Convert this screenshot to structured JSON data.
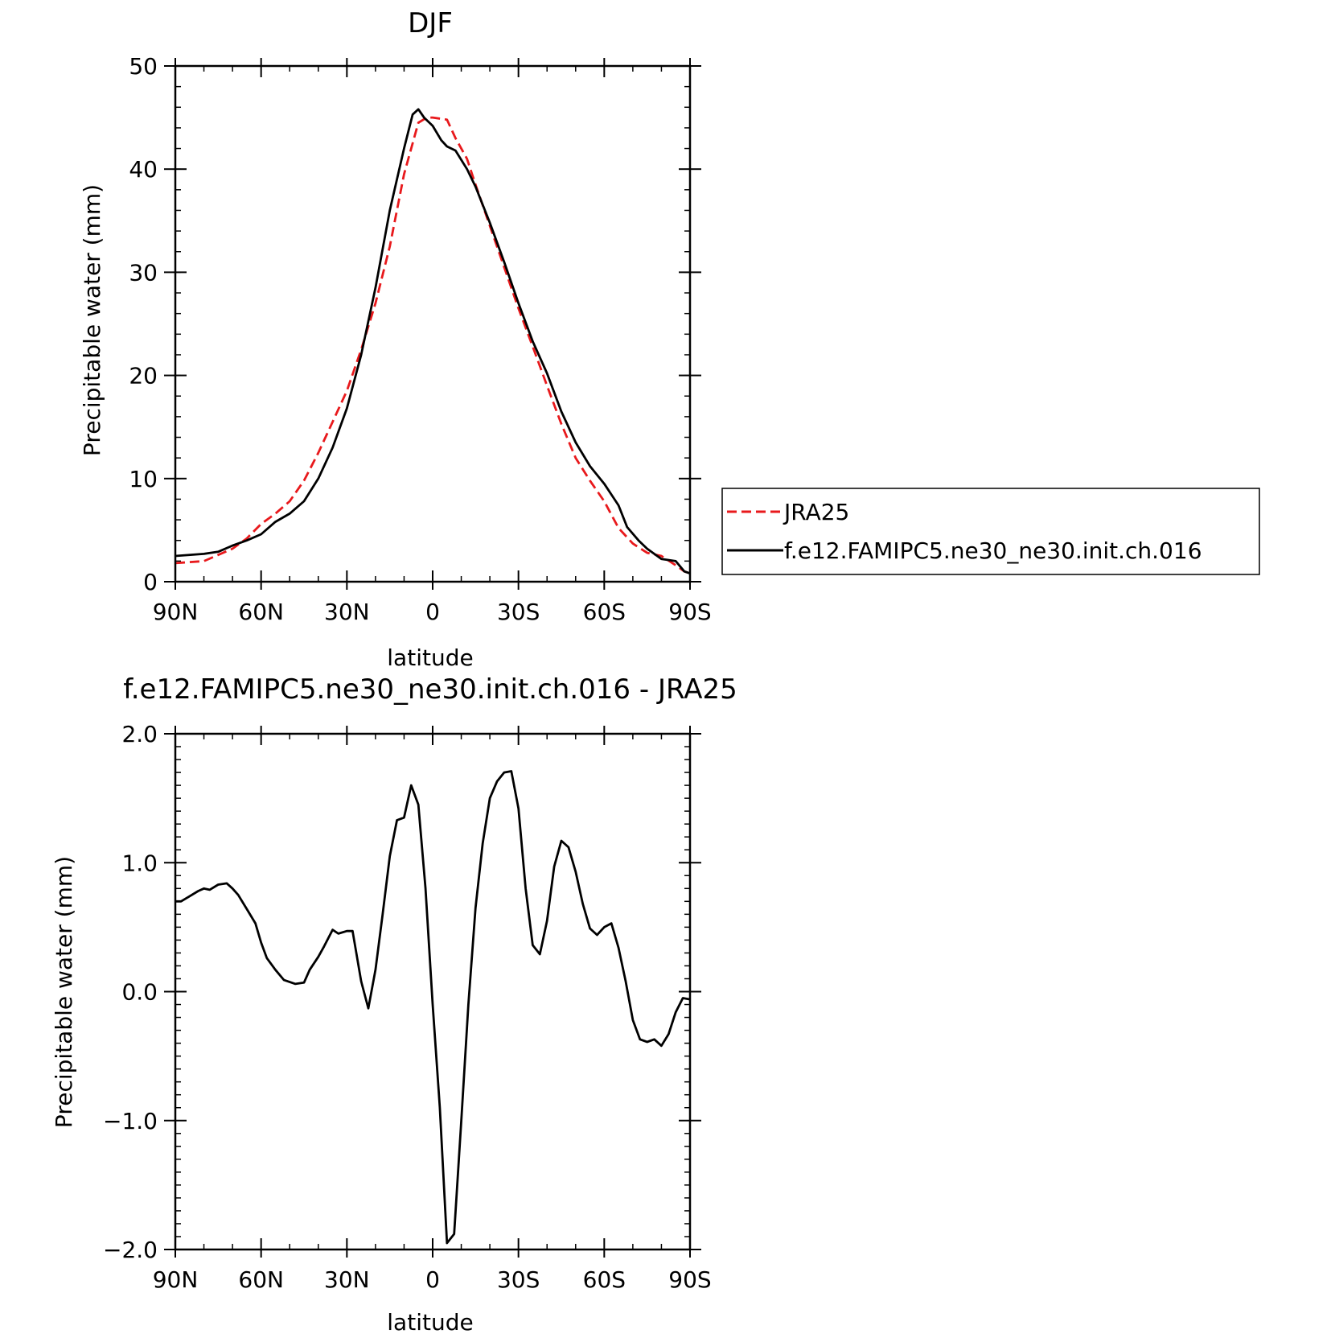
{
  "chart_data": [
    {
      "type": "line",
      "title": "DJF",
      "xlabel": "latitude",
      "ylabel": "Precipitable water (mm)",
      "xlim": [
        90,
        -90
      ],
      "ylim": [
        0,
        50
      ],
      "xticks": [
        {
          "value": 90,
          "label": "90N"
        },
        {
          "value": 60,
          "label": "60N"
        },
        {
          "value": 30,
          "label": "30N"
        },
        {
          "value": 0,
          "label": "0"
        },
        {
          "value": -30,
          "label": "30S"
        },
        {
          "value": -60,
          "label": "60S"
        },
        {
          "value": -90,
          "label": "90S"
        }
      ],
      "yticks": [
        {
          "value": 0,
          "label": "0"
        },
        {
          "value": 10,
          "label": "10"
        },
        {
          "value": 20,
          "label": "20"
        },
        {
          "value": 30,
          "label": "30"
        },
        {
          "value": 40,
          "label": "40"
        },
        {
          "value": 50,
          "label": "50"
        }
      ],
      "legend_position": "right",
      "series": [
        {
          "name": "JRA25",
          "color": "#e8191c",
          "dash": "dashed",
          "x": [
            90,
            80,
            75,
            70,
            65,
            60,
            55,
            50,
            45,
            40,
            35,
            30,
            25,
            20,
            15,
            10,
            5,
            2,
            0,
            -5,
            -8,
            -12,
            -15,
            -20,
            -25,
            -30,
            -35,
            -40,
            -45,
            -50,
            -55,
            -60,
            -65,
            -70,
            -75,
            -80,
            -85,
            -88,
            -90
          ],
          "values": [
            1.8,
            2.0,
            2.6,
            3.2,
            4.2,
            5.6,
            6.6,
            7.8,
            9.8,
            12.5,
            15.5,
            18.5,
            22.5,
            27.0,
            32.5,
            39.5,
            44.5,
            45.0,
            45.0,
            44.8,
            43.0,
            41.0,
            38.5,
            34.5,
            30.5,
            26.5,
            22.8,
            19.0,
            15.3,
            12.0,
            9.8,
            7.8,
            5.2,
            3.7,
            2.8,
            2.5,
            1.6,
            1.0,
            0.8
          ]
        },
        {
          "name": "f.e12.FAMIPC5.ne30_ne30.init.ch.016",
          "color": "#000000",
          "dash": "solid",
          "x": [
            90,
            80,
            75,
            70,
            65,
            60,
            55,
            50,
            45,
            40,
            35,
            30,
            25,
            20,
            15,
            10,
            7,
            5,
            3,
            0,
            -3,
            -5,
            -8,
            -12,
            -15,
            -20,
            -25,
            -30,
            -35,
            -40,
            -45,
            -50,
            -55,
            -60,
            -65,
            -68,
            -72,
            -75,
            -80,
            -85,
            -88,
            -90
          ],
          "values": [
            2.5,
            2.7,
            2.9,
            3.5,
            4.0,
            4.6,
            5.8,
            6.6,
            7.8,
            10.0,
            13.0,
            16.8,
            22.0,
            28.5,
            36.0,
            42.0,
            45.3,
            45.8,
            45.0,
            44.2,
            42.8,
            42.2,
            41.8,
            40.0,
            38.3,
            34.8,
            31.0,
            27.0,
            23.3,
            20.2,
            16.5,
            13.5,
            11.2,
            9.5,
            7.4,
            5.3,
            4.0,
            3.2,
            2.2,
            2.0,
            1.0,
            0.8
          ]
        }
      ]
    },
    {
      "type": "line",
      "title": "f.e12.FAMIPC5.ne30_ne30.init.ch.016 - JRA25",
      "xlabel": "latitude",
      "ylabel": "Precipitable water (mm)",
      "xlim": [
        90,
        -90
      ],
      "ylim": [
        -2.0,
        2.0
      ],
      "xticks": [
        {
          "value": 90,
          "label": "90N"
        },
        {
          "value": 60,
          "label": "60N"
        },
        {
          "value": 30,
          "label": "30N"
        },
        {
          "value": 0,
          "label": "0"
        },
        {
          "value": -30,
          "label": "30S"
        },
        {
          "value": -60,
          "label": "60S"
        },
        {
          "value": -90,
          "label": "90S"
        }
      ],
      "yticks": [
        {
          "value": -2.0,
          "label": "−2.0"
        },
        {
          "value": -1.0,
          "label": "−1.0"
        },
        {
          "value": 0.0,
          "label": "0.0"
        },
        {
          "value": 1.0,
          "label": "1.0"
        },
        {
          "value": 2.0,
          "label": "2.0"
        }
      ],
      "series": [
        {
          "color": "#000000",
          "dash": "solid",
          "x": [
            90,
            88,
            85,
            82,
            80,
            78,
            75,
            72,
            70,
            68,
            65,
            62,
            60,
            58,
            55,
            52,
            48,
            45,
            43,
            40,
            38,
            35,
            33,
            30,
            28,
            25,
            22.5,
            20,
            17.5,
            15,
            12.5,
            10,
            7.5,
            5,
            2.5,
            0,
            -2.5,
            -5,
            -7.5,
            -10,
            -12.5,
            -15,
            -17.5,
            -20,
            -22.5,
            -25,
            -27.5,
            -30,
            -32.5,
            -35,
            -37.5,
            -40,
            -42.5,
            -45,
            -47.5,
            -50,
            -52.5,
            -55,
            -57.5,
            -60,
            -62.5,
            -65,
            -67.5,
            -70,
            -72.5,
            -75,
            -77.5,
            -80,
            -82.5,
            -85,
            -87.5,
            -90
          ],
          "values": [
            0.7,
            0.7,
            0.74,
            0.78,
            0.8,
            0.79,
            0.83,
            0.84,
            0.8,
            0.75,
            0.64,
            0.53,
            0.38,
            0.26,
            0.17,
            0.09,
            0.06,
            0.07,
            0.17,
            0.27,
            0.35,
            0.48,
            0.45,
            0.47,
            0.47,
            0.08,
            -0.13,
            0.17,
            0.6,
            1.05,
            1.33,
            1.35,
            1.6,
            1.45,
            0.8,
            -0.1,
            -0.9,
            -1.95,
            -1.88,
            -1.0,
            -0.1,
            0.65,
            1.15,
            1.5,
            1.63,
            1.7,
            1.71,
            1.42,
            0.8,
            0.36,
            0.29,
            0.55,
            0.97,
            1.17,
            1.12,
            0.93,
            0.68,
            0.49,
            0.44,
            0.5,
            0.53,
            0.34,
            0.08,
            -0.22,
            -0.37,
            -0.39,
            -0.37,
            -0.42,
            -0.33,
            -0.16,
            -0.05,
            -0.06
          ]
        }
      ]
    }
  ],
  "legend": {
    "entries": [
      {
        "label": "JRA25",
        "color": "#e8191c",
        "dash": "dashed"
      },
      {
        "label": "f.e12.FAMIPC5.ne30_ne30.init.ch.016",
        "color": "#000000",
        "dash": "solid"
      }
    ]
  }
}
